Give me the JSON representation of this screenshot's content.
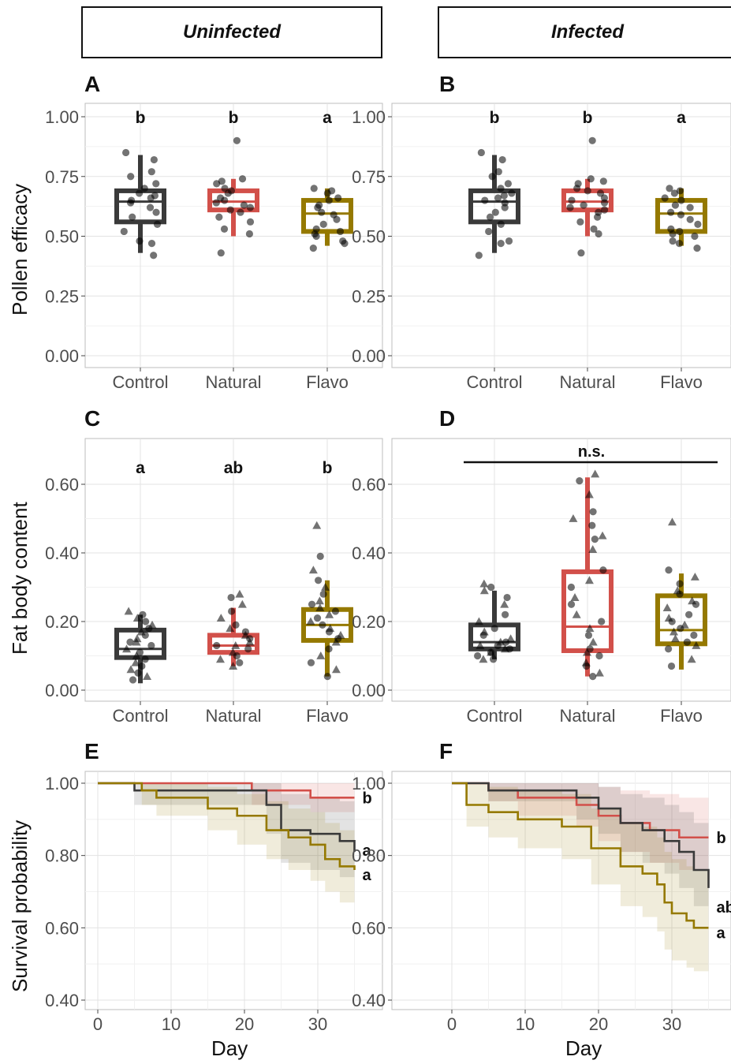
{
  "headers": {
    "left": "Uninfected",
    "right": "Infected"
  },
  "labels": {
    "y_row1": "Pollen efficacy",
    "y_row2": "Fat body content",
    "y_row3": "Survival probability",
    "x_row3": "Day"
  },
  "colors": {
    "Control": "#3a3a3a",
    "Natural": "#d2504a",
    "Flavo": "#957900"
  },
  "chart_data": [
    {
      "panel": "A",
      "type": "box",
      "group": "Uninfected",
      "ylabel": "Pollen efficacy",
      "categories": [
        "Control",
        "Natural",
        "Flavo"
      ],
      "ylim": [
        0,
        1.05
      ],
      "yticks": [
        "0.00",
        "0.25",
        "0.50",
        "0.75",
        "1.00"
      ],
      "letters": [
        "b",
        "b",
        "a"
      ],
      "boxes": [
        {
          "min": 0.43,
          "q1": 0.56,
          "median": 0.645,
          "q3": 0.69,
          "max": 0.84
        },
        {
          "min": 0.5,
          "q1": 0.61,
          "median": 0.645,
          "q3": 0.69,
          "max": 0.74
        },
        {
          "min": 0.46,
          "q1": 0.52,
          "median": 0.595,
          "q3": 0.65,
          "max": 0.7
        }
      ],
      "points": [
        [
          0.85,
          0.82,
          0.77,
          0.75,
          0.72,
          0.7,
          0.68,
          0.67,
          0.66,
          0.65,
          0.64,
          0.62,
          0.6,
          0.58,
          0.55,
          0.52,
          0.48,
          0.47,
          0.42
        ],
        [
          0.9,
          0.74,
          0.73,
          0.72,
          0.7,
          0.69,
          0.68,
          0.66,
          0.65,
          0.64,
          0.63,
          0.62,
          0.61,
          0.6,
          0.58,
          0.56,
          0.53,
          0.51,
          0.43
        ],
        [
          0.7,
          0.69,
          0.68,
          0.66,
          0.65,
          0.63,
          0.62,
          0.6,
          0.59,
          0.57,
          0.55,
          0.53,
          0.52,
          0.51,
          0.5,
          0.48,
          0.47,
          0.45
        ]
      ]
    },
    {
      "panel": "B",
      "type": "box",
      "group": "Infected",
      "ylabel": "Pollen efficacy",
      "categories": [
        "Control",
        "Natural",
        "Flavo"
      ],
      "ylim": [
        0,
        1.05
      ],
      "yticks": [
        "0.00",
        "0.25",
        "0.50",
        "0.75",
        "1.00"
      ],
      "letters": [
        "b",
        "b",
        "a"
      ],
      "boxes": [
        {
          "min": 0.43,
          "q1": 0.56,
          "median": 0.645,
          "q3": 0.69,
          "max": 0.84
        },
        {
          "min": 0.5,
          "q1": 0.61,
          "median": 0.645,
          "q3": 0.69,
          "max": 0.74
        },
        {
          "min": 0.46,
          "q1": 0.52,
          "median": 0.595,
          "q3": 0.65,
          "max": 0.7
        }
      ],
      "points": [
        [
          0.85,
          0.82,
          0.77,
          0.75,
          0.72,
          0.7,
          0.68,
          0.67,
          0.66,
          0.65,
          0.64,
          0.62,
          0.6,
          0.58,
          0.55,
          0.52,
          0.48,
          0.47,
          0.42
        ],
        [
          0.9,
          0.74,
          0.73,
          0.72,
          0.7,
          0.69,
          0.68,
          0.66,
          0.65,
          0.64,
          0.63,
          0.62,
          0.61,
          0.6,
          0.58,
          0.56,
          0.53,
          0.51,
          0.43
        ],
        [
          0.7,
          0.69,
          0.68,
          0.66,
          0.65,
          0.63,
          0.62,
          0.6,
          0.59,
          0.57,
          0.55,
          0.53,
          0.52,
          0.51,
          0.5,
          0.48,
          0.47,
          0.45
        ]
      ]
    },
    {
      "panel": "C",
      "type": "box",
      "group": "Uninfected",
      "ylabel": "Fat body content",
      "categories": [
        "Control",
        "Natural",
        "Flavo"
      ],
      "ylim": [
        0,
        0.72
      ],
      "yticks": [
        "0.00",
        "0.20",
        "0.40",
        "0.60"
      ],
      "letters": [
        "a",
        "ab",
        "b"
      ],
      "boxes": [
        {
          "min": 0.02,
          "q1": 0.095,
          "median": 0.12,
          "q3": 0.175,
          "max": 0.22
        },
        {
          "min": 0.07,
          "q1": 0.11,
          "median": 0.13,
          "q3": 0.16,
          "max": 0.24
        },
        {
          "min": 0.04,
          "q1": 0.145,
          "median": 0.19,
          "q3": 0.235,
          "max": 0.32
        }
      ],
      "points": [
        [
          0.23,
          0.22,
          0.21,
          0.2,
          0.19,
          0.18,
          0.17,
          0.16,
          0.15,
          0.14,
          0.14,
          0.13,
          0.12,
          0.11,
          0.1,
          0.09,
          0.08,
          0.07,
          0.06,
          0.05,
          0.04,
          0.03
        ],
        [
          0.28,
          0.27,
          0.25,
          0.23,
          0.21,
          0.19,
          0.18,
          0.17,
          0.16,
          0.15,
          0.14,
          0.13,
          0.13,
          0.12,
          0.11,
          0.1,
          0.09,
          0.08,
          0.07
        ],
        [
          0.48,
          0.39,
          0.35,
          0.32,
          0.3,
          0.28,
          0.26,
          0.25,
          0.24,
          0.23,
          0.22,
          0.21,
          0.2,
          0.19,
          0.18,
          0.17,
          0.16,
          0.15,
          0.14,
          0.12,
          0.1,
          0.08,
          0.06,
          0.04
        ]
      ]
    },
    {
      "panel": "D",
      "type": "box",
      "group": "Infected",
      "ylabel": "Fat body content",
      "categories": [
        "Control",
        "Natural",
        "Flavo"
      ],
      "ylim": [
        0,
        0.72
      ],
      "yticks": [
        "0.00",
        "0.20",
        "0.40",
        "0.60"
      ],
      "letters": [],
      "annotation": "n.s.",
      "boxes": [
        {
          "min": 0.09,
          "q1": 0.12,
          "median": 0.14,
          "q3": 0.19,
          "max": 0.29
        },
        {
          "min": 0.04,
          "q1": 0.115,
          "median": 0.185,
          "q3": 0.345,
          "max": 0.62
        },
        {
          "min": 0.06,
          "q1": 0.135,
          "median": 0.175,
          "q3": 0.275,
          "max": 0.34
        }
      ],
      "points": [
        [
          0.31,
          0.3,
          0.29,
          0.27,
          0.25,
          0.22,
          0.2,
          0.18,
          0.17,
          0.16,
          0.15,
          0.14,
          0.14,
          0.13,
          0.13,
          0.12,
          0.12,
          0.11,
          0.11,
          0.1,
          0.09,
          0.09
        ],
        [
          0.63,
          0.61,
          0.57,
          0.52,
          0.5,
          0.48,
          0.45,
          0.44,
          0.41,
          0.35,
          0.32,
          0.3,
          0.27,
          0.25,
          0.22,
          0.2,
          0.18,
          0.16,
          0.14,
          0.12,
          0.11,
          0.1,
          0.08,
          0.07,
          0.05,
          0.04
        ],
        [
          0.49,
          0.35,
          0.33,
          0.31,
          0.29,
          0.28,
          0.26,
          0.25,
          0.24,
          0.22,
          0.21,
          0.2,
          0.19,
          0.18,
          0.17,
          0.16,
          0.15,
          0.14,
          0.13,
          0.12,
          0.09,
          0.07
        ]
      ]
    },
    {
      "panel": "E",
      "type": "line",
      "subtype": "survival-step",
      "group": "Uninfected",
      "xlabel": "Day",
      "ylabel": "Survival probability",
      "xlim": [
        -2,
        39
      ],
      "xticks": [
        "0",
        "10",
        "20",
        "30"
      ],
      "ylim": [
        0.38,
        1.02
      ],
      "yticks": [
        "0.40",
        "0.60",
        "0.80",
        "1.00"
      ],
      "series": [
        {
          "name": "Natural",
          "label": "b",
          "steps": [
            [
              0,
              1.0
            ],
            [
              21,
              0.98
            ],
            [
              29,
              0.96
            ],
            [
              35,
              0.96
            ]
          ],
          "ci": [
            [
              0,
              1.0,
              1.0
            ],
            [
              21,
              1.0,
              0.94
            ],
            [
              29,
              1.0,
              0.92
            ],
            [
              35,
              1.0,
              0.92
            ]
          ]
        },
        {
          "name": "Control",
          "label": "a",
          "steps": [
            [
              0,
              1.0
            ],
            [
              5,
              0.98
            ],
            [
              23,
              0.94
            ],
            [
              25,
              0.87
            ],
            [
              29,
              0.86
            ],
            [
              33,
              0.84
            ],
            [
              35,
              0.81
            ]
          ],
          "ci": [
            [
              0,
              1.0,
              1.0
            ],
            [
              5,
              1.0,
              0.94
            ],
            [
              23,
              1.0,
              0.86
            ],
            [
              25,
              0.97,
              0.78
            ],
            [
              29,
              0.96,
              0.76
            ],
            [
              33,
              0.95,
              0.74
            ],
            [
              35,
              0.95,
              0.72
            ]
          ]
        },
        {
          "name": "Flavo",
          "label": "a",
          "steps": [
            [
              0,
              1.0
            ],
            [
              6,
              0.98
            ],
            [
              8,
              0.96
            ],
            [
              15,
              0.93
            ],
            [
              19,
              0.91
            ],
            [
              23,
              0.87
            ],
            [
              26,
              0.85
            ],
            [
              29,
              0.83
            ],
            [
              31,
              0.79
            ],
            [
              33,
              0.77
            ],
            [
              35,
              0.76
            ]
          ],
          "ci": [
            [
              0,
              1.0,
              1.0
            ],
            [
              6,
              1.0,
              0.94
            ],
            [
              8,
              1.0,
              0.91
            ],
            [
              15,
              0.99,
              0.87
            ],
            [
              19,
              0.97,
              0.83
            ],
            [
              23,
              0.95,
              0.79
            ],
            [
              26,
              0.93,
              0.76
            ],
            [
              29,
              0.92,
              0.73
            ],
            [
              31,
              0.89,
              0.7
            ],
            [
              33,
              0.87,
              0.67
            ],
            [
              35,
              0.86,
              0.66
            ]
          ]
        }
      ]
    },
    {
      "panel": "F",
      "type": "line",
      "subtype": "survival-step",
      "group": "Infected",
      "xlabel": "Day",
      "ylabel": "Survival probability",
      "xlim": [
        -2,
        39
      ],
      "xticks": [
        "0",
        "10",
        "20",
        "30"
      ],
      "ylim": [
        0.38,
        1.02
      ],
      "yticks": [
        "0.40",
        "0.60",
        "0.80",
        "1.00"
      ],
      "series": [
        {
          "name": "Natural",
          "label": "b",
          "steps": [
            [
              0,
              1.0
            ],
            [
              5,
              0.98
            ],
            [
              9,
              0.96
            ],
            [
              17,
              0.94
            ],
            [
              20,
              0.91
            ],
            [
              23,
              0.89
            ],
            [
              27,
              0.87
            ],
            [
              31,
              0.85
            ],
            [
              35,
              0.85
            ]
          ],
          "ci": [
            [
              0,
              1.0,
              1.0
            ],
            [
              5,
              1.0,
              0.95
            ],
            [
              9,
              1.0,
              0.91
            ],
            [
              17,
              1.0,
              0.88
            ],
            [
              20,
              0.99,
              0.84
            ],
            [
              23,
              0.98,
              0.81
            ],
            [
              27,
              0.97,
              0.78
            ],
            [
              31,
              0.96,
              0.76
            ],
            [
              35,
              0.96,
              0.76
            ]
          ]
        },
        {
          "name": "Control",
          "label": "ab",
          "steps": [
            [
              0,
              1.0
            ],
            [
              5,
              0.98
            ],
            [
              17,
              0.96
            ],
            [
              20,
              0.93
            ],
            [
              23,
              0.89
            ],
            [
              26,
              0.87
            ],
            [
              29,
              0.84
            ],
            [
              31,
              0.81
            ],
            [
              33,
              0.76
            ],
            [
              35,
              0.71
            ]
          ],
          "ci": [
            [
              0,
              1.0,
              1.0
            ],
            [
              5,
              1.0,
              0.95
            ],
            [
              17,
              1.0,
              0.9
            ],
            [
              20,
              0.99,
              0.86
            ],
            [
              23,
              0.97,
              0.81
            ],
            [
              26,
              0.96,
              0.78
            ],
            [
              29,
              0.94,
              0.75
            ],
            [
              31,
              0.92,
              0.71
            ],
            [
              33,
              0.89,
              0.66
            ],
            [
              35,
              0.86,
              0.61
            ]
          ]
        },
        {
          "name": "Flavo",
          "label": "a",
          "steps": [
            [
              0,
              1.0
            ],
            [
              2,
              0.94
            ],
            [
              5,
              0.92
            ],
            [
              9,
              0.9
            ],
            [
              15,
              0.88
            ],
            [
              19,
              0.82
            ],
            [
              23,
              0.77
            ],
            [
              26,
              0.75
            ],
            [
              28,
              0.72
            ],
            [
              29,
              0.67
            ],
            [
              30,
              0.64
            ],
            [
              32,
              0.62
            ],
            [
              33,
              0.6
            ],
            [
              35,
              0.6
            ]
          ],
          "ci": [
            [
              0,
              1.0,
              1.0
            ],
            [
              2,
              1.0,
              0.88
            ],
            [
              5,
              0.99,
              0.85
            ],
            [
              9,
              0.98,
              0.82
            ],
            [
              15,
              0.97,
              0.79
            ],
            [
              19,
              0.93,
              0.72
            ],
            [
              23,
              0.89,
              0.66
            ],
            [
              26,
              0.88,
              0.63
            ],
            [
              28,
              0.85,
              0.59
            ],
            [
              29,
              0.81,
              0.54
            ],
            [
              30,
              0.79,
              0.51
            ],
            [
              32,
              0.77,
              0.49
            ],
            [
              33,
              0.76,
              0.48
            ],
            [
              35,
              0.76,
              0.48
            ]
          ]
        }
      ]
    }
  ]
}
